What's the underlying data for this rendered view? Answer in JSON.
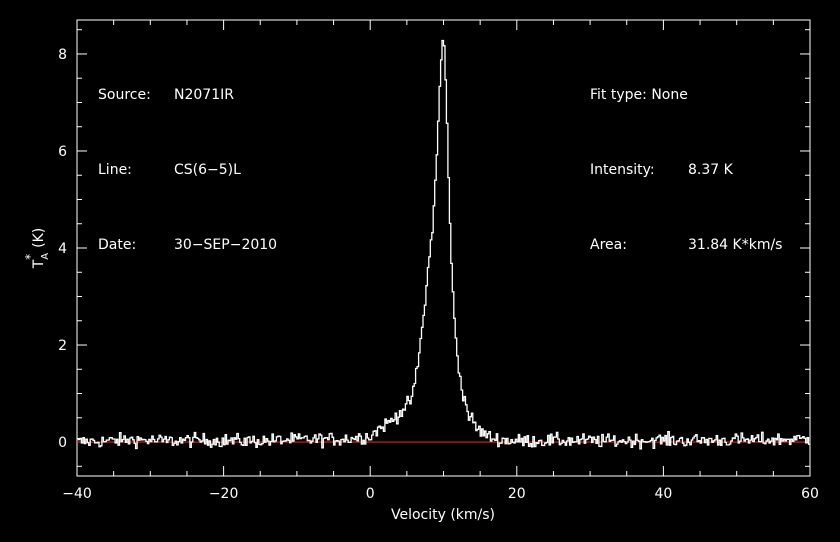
{
  "header": {
    "source_label": "Source:",
    "source_value": "N2071IR",
    "line_label": "Line:",
    "line_value": "CS(6−5)L",
    "date_label": "Date:",
    "date_value": "30−SEP−2010",
    "fit_label": "Fit type:",
    "fit_value": "None",
    "intensity_label": "Intensity:",
    "intensity_value": "8.37 K",
    "area_label": "Area:",
    "area_value": "31.84 K*km/s"
  },
  "colors": {
    "background": "#000000",
    "axes": "#ffffff",
    "spectrum": "#ffffff",
    "baseline": "#e02020"
  },
  "chart_data": {
    "type": "line",
    "title": "",
    "xlabel": "Velocity (km/s)",
    "ylabel": "T_A^* (K)",
    "ylabel_main": "T",
    "ylabel_sub": "A",
    "ylabel_sup": "*",
    "ylabel_unit": "(K)",
    "xlim": [
      -40,
      60
    ],
    "ylim": [
      -0.7,
      8.7
    ],
    "xticks": [
      -40,
      -20,
      0,
      20,
      40,
      60
    ],
    "xtick_labels": [
      "−40",
      "−20",
      "0",
      "20",
      "40",
      "60"
    ],
    "yticks": [
      0,
      2,
      4,
      6,
      8
    ],
    "ytick_labels": [
      "0",
      "2",
      "4",
      "6",
      "8"
    ],
    "grid": false,
    "baseline_y": 0,
    "series": [
      {
        "x": [
          -40,
          -36,
          -32,
          -28,
          -24,
          -20,
          -16,
          -12,
          -8,
          -4,
          0,
          1,
          2,
          3,
          4,
          5,
          5.5,
          6,
          6.5,
          7,
          7.5,
          8,
          8.5,
          9,
          9.3,
          9.6,
          9.8,
          10,
          10.2,
          10.5,
          10.8,
          11,
          11.3,
          11.6,
          12,
          12.5,
          13,
          13.5,
          14,
          14.5,
          15,
          15.5,
          16,
          17,
          18,
          20,
          24,
          28,
          32,
          36,
          40,
          44,
          48,
          52,
          56,
          60
        ],
        "y": [
          0,
          0.02,
          0.05,
          0.02,
          0.04,
          0.03,
          0.02,
          0.04,
          0.05,
          0.06,
          0.12,
          0.25,
          0.35,
          0.45,
          0.6,
          0.75,
          0.85,
          1.1,
          1.6,
          2.2,
          2.9,
          3.7,
          4.4,
          5.6,
          6.6,
          7.6,
          8.2,
          8.37,
          7.9,
          6.5,
          5.1,
          4.0,
          3.0,
          2.3,
          1.6,
          1.15,
          0.8,
          0.55,
          0.42,
          0.3,
          0.22,
          0.18,
          0.12,
          0.07,
          0.04,
          0.02,
          0.03,
          0.03,
          0.02,
          0.03,
          0.04,
          0.03,
          0.04,
          0.04,
          0.05,
          0.06
        ]
      }
    ],
    "noise_rms": 0.07
  }
}
